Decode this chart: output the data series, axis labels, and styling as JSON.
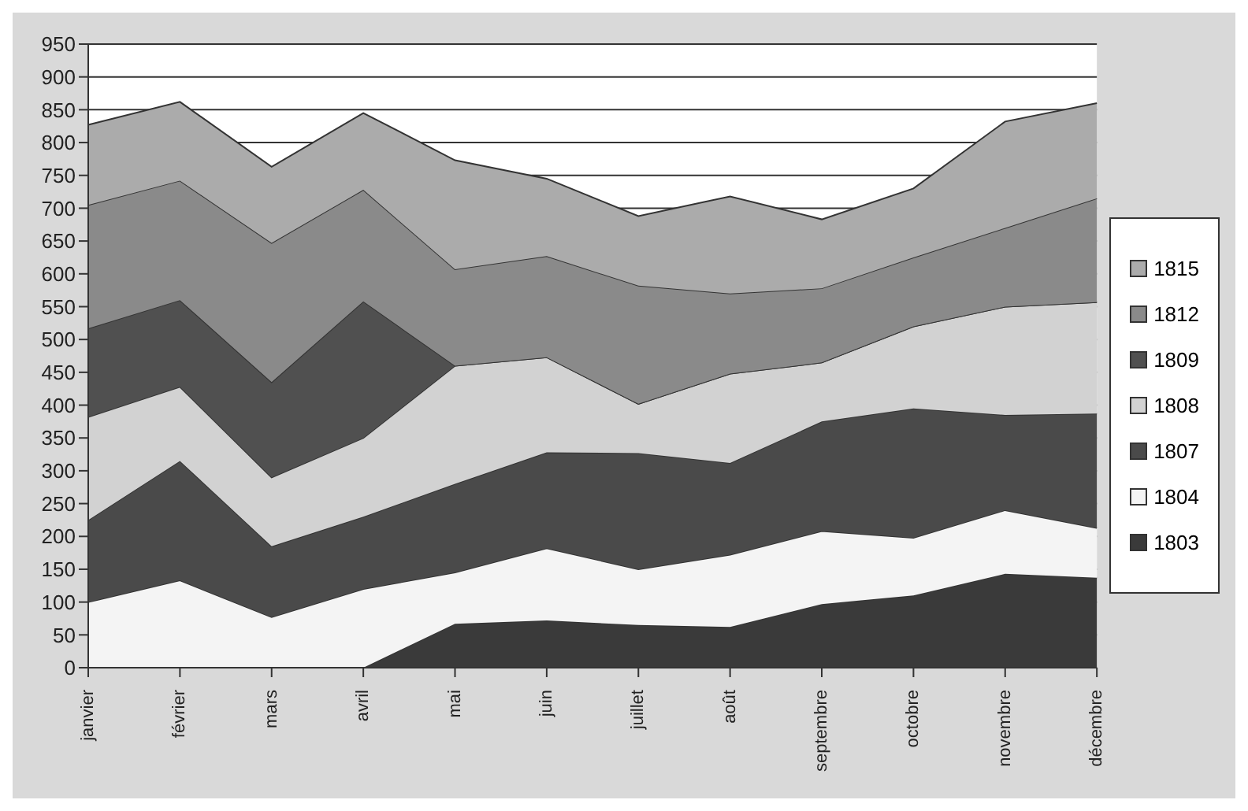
{
  "chart_data": {
    "type": "area",
    "stacked": true,
    "categories": [
      "janvier",
      "février",
      "mars",
      "avril",
      "mai",
      "juin",
      "juillet",
      "août",
      "septembre",
      "octobre",
      "novembre",
      "décembre"
    ],
    "series": [
      {
        "name": "1803",
        "color": "#3a3a3a",
        "values": [
          0,
          0,
          0,
          0,
          67,
          72,
          65,
          62,
          97,
          110,
          143,
          137
        ]
      },
      {
        "name": "1804",
        "color": "#f4f4f4",
        "values": [
          100,
          133,
          77,
          120,
          78,
          110,
          85,
          110,
          111,
          88,
          97,
          76
        ]
      },
      {
        "name": "1807",
        "color": "#4a4a4a",
        "values": [
          125,
          182,
          108,
          110,
          135,
          146,
          177,
          140,
          167,
          197,
          145,
          174
        ]
      },
      {
        "name": "1808",
        "color": "#d2d2d2",
        "values": [
          157,
          113,
          105,
          120,
          180,
          145,
          75,
          136,
          90,
          125,
          165,
          170
        ]
      },
      {
        "name": "1809",
        "color": "#505050",
        "values": [
          135,
          132,
          145,
          208,
          0,
          0,
          0,
          0,
          0,
          0,
          0,
          0
        ]
      },
      {
        "name": "1812",
        "color": "#8a8a8a",
        "values": [
          188,
          182,
          212,
          170,
          147,
          154,
          180,
          122,
          113,
          105,
          120,
          158
        ]
      },
      {
        "name": "1815",
        "color": "#ababab",
        "values": [
          122,
          120,
          116,
          117,
          166,
          118,
          106,
          148,
          105,
          105,
          162,
          145
        ]
      }
    ],
    "ylim": [
      0,
      950
    ],
    "yticks": [
      0,
      50,
      100,
      150,
      200,
      250,
      300,
      350,
      400,
      450,
      500,
      550,
      600,
      650,
      700,
      750,
      800,
      850,
      900,
      950
    ],
    "grid": "y",
    "legend": "right"
  }
}
